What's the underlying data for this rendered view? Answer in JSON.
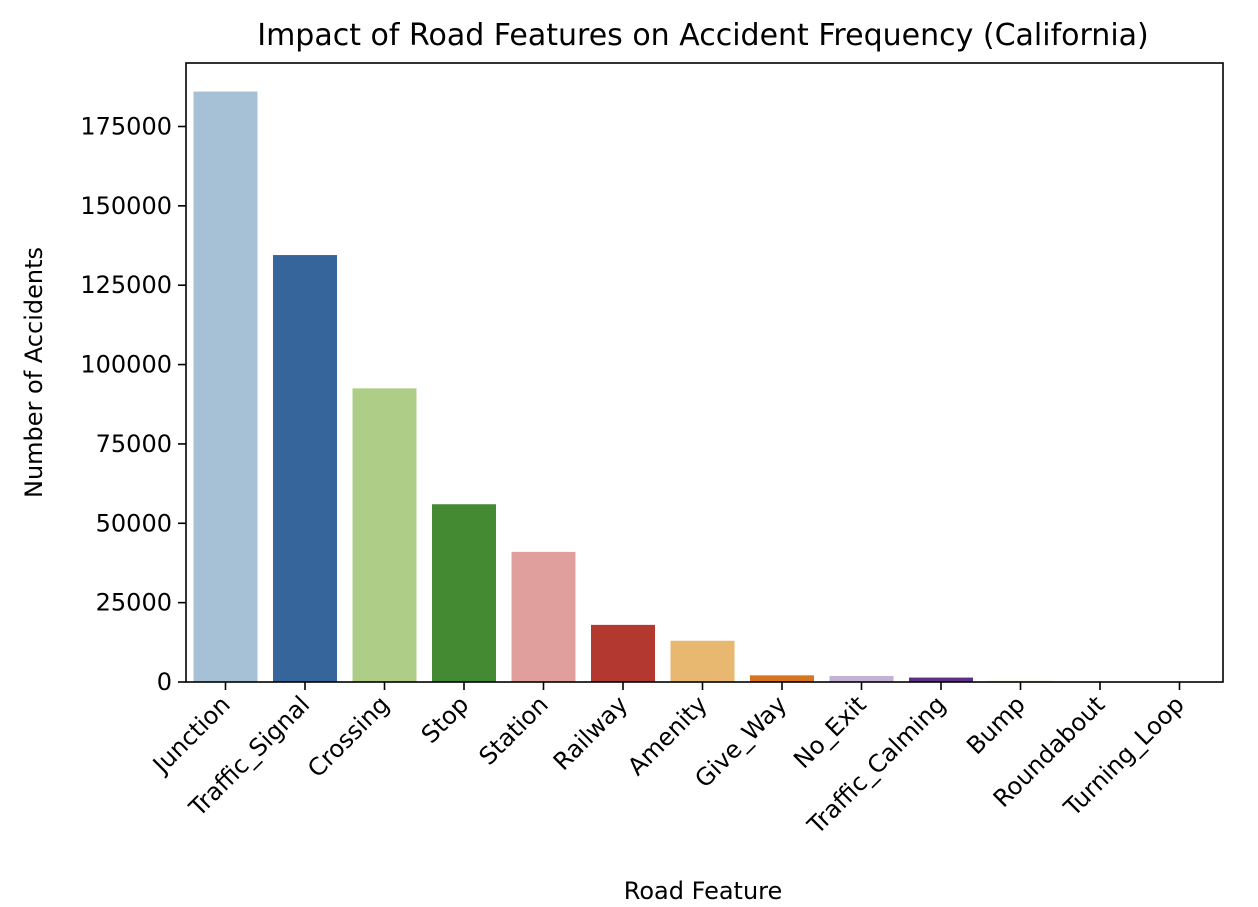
{
  "chart_data": {
    "type": "bar",
    "title": "Impact of Road Features on Accident Frequency (California)",
    "xlabel": "Road Feature",
    "ylabel": "Number of Accidents",
    "categories": [
      "Junction",
      "Traffic_Signal",
      "Crossing",
      "Stop",
      "Station",
      "Railway",
      "Amenity",
      "Give_Way",
      "No_Exit",
      "Traffic_Calming",
      "Bump",
      "Roundabout",
      "Turning_Loop"
    ],
    "values": [
      186000,
      134500,
      92500,
      56000,
      41000,
      18000,
      13000,
      2100,
      1900,
      1400,
      400,
      40,
      0
    ],
    "colors": [
      "#a6c1d6",
      "#35659a",
      "#aece88",
      "#438a32",
      "#e09f9c",
      "#b33930",
      "#e8b871",
      "#d6741f",
      "#c3b2d6",
      "#5a3186",
      "#ecec99",
      "#b15928",
      "#b15928"
    ],
    "yticks": [
      0,
      25000,
      50000,
      75000,
      100000,
      125000,
      150000,
      175000
    ],
    "ylim": [
      0,
      195000
    ],
    "grid": false,
    "legend": "none"
  }
}
